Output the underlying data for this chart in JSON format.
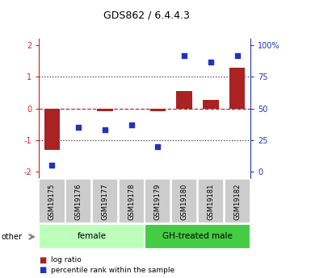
{
  "title": "GDS862 / 6.4.4.3",
  "samples": [
    "GSM19175",
    "GSM19176",
    "GSM19177",
    "GSM19178",
    "GSM19179",
    "GSM19180",
    "GSM19181",
    "GSM19182"
  ],
  "log_ratio": [
    -1.3,
    0.0,
    -0.08,
    0.0,
    -0.1,
    0.55,
    0.28,
    1.3
  ],
  "percentile_rank_pct": [
    5,
    35,
    33,
    37,
    20,
    92,
    87,
    92
  ],
  "groups": [
    {
      "label": "female",
      "start": 0,
      "end": 4,
      "color": "#bbffbb"
    },
    {
      "label": "GH-treated male",
      "start": 4,
      "end": 8,
      "color": "#44cc44"
    }
  ],
  "ylim": [
    -2.2,
    2.2
  ],
  "bar_color": "#aa2222",
  "scatter_color": "#2233bb",
  "zero_line_color": "#cc2222",
  "dotted_line_color": "#333333",
  "legend_log_ratio_label": "log ratio",
  "legend_percentile_label": "percentile rank within the sample",
  "other_label": "other",
  "tick_box_color": "#cccccc",
  "right_ytick_pct": [
    0,
    25,
    50,
    75,
    100
  ],
  "right_yticklabels": [
    "0",
    "25",
    "50",
    "75",
    "100%"
  ]
}
